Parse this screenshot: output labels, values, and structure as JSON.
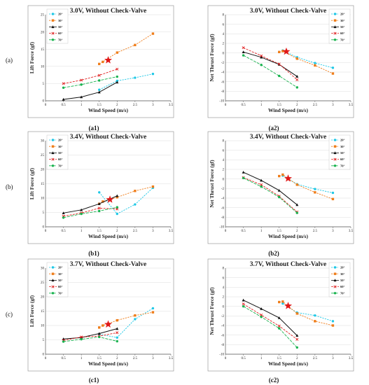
{
  "row_labels": [
    "(a)",
    "(b)",
    "(c)"
  ],
  "legend_labels": [
    "20°",
    "30°",
    "50°",
    "60°",
    "70°"
  ],
  "series_styles": [
    {
      "color": "#1ec8e6",
      "marker": "circle",
      "dash": "2.2,1.4"
    },
    {
      "color": "#ef7d1a",
      "marker": "square",
      "dash": "2.2,1.4"
    },
    {
      "color": "#111111",
      "marker": "triangle",
      "dash": ""
    },
    {
      "color": "#e02020",
      "marker": "x",
      "dash": "3,1.5"
    },
    {
      "color": "#19b34f",
      "marker": "circle",
      "dash": "4,1.5"
    }
  ],
  "star_color": "#e01818",
  "chart_data": [
    {
      "id": "a1",
      "panel_label": "(a1)",
      "type": "line",
      "title": "3.0V, Without Check-Valve",
      "xlabel": "Wind Speed (m/s)",
      "ylabel": "Lift Force (gf)",
      "xlim": [
        0,
        3.5
      ],
      "ylim": [
        0,
        25
      ],
      "xticks": [
        "0",
        "0.5",
        "1",
        "1.5",
        "2",
        "2.5",
        "3",
        "3.5"
      ],
      "yticks": [
        "0",
        "5",
        "10",
        "15",
        "20",
        "25"
      ],
      "legend_position": "top-left",
      "star": {
        "x": 1.75,
        "y": 11.8
      },
      "series": [
        {
          "name": "20°",
          "x": [
            1.5,
            2,
            2.5,
            3
          ],
          "y": [
            3.2,
            5.8,
            6.7,
            7.8
          ]
        },
        {
          "name": "30°",
          "x": [
            1.5,
            1.6,
            2,
            2.5,
            3
          ],
          "y": [
            10.7,
            11.3,
            14.0,
            16.2,
            19.5
          ]
        },
        {
          "name": "50°",
          "x": [
            0.5,
            1,
            1.5,
            2
          ],
          "y": [
            0.4,
            1.1,
            2.5,
            5.4
          ]
        },
        {
          "name": "60°",
          "x": [
            0.5,
            1,
            1.5,
            2
          ],
          "y": [
            5.0,
            6.0,
            7.4,
            9.2
          ]
        },
        {
          "name": "70°",
          "x": [
            0.5,
            1,
            1.5,
            2
          ],
          "y": [
            3.8,
            4.7,
            5.9,
            7.0
          ]
        }
      ]
    },
    {
      "id": "a2",
      "panel_label": "(a2)",
      "type": "line",
      "title": "3.0V, Without Check-Valve",
      "xlabel": "Wind Speed (m/s)",
      "ylabel": "Net Thrust Force (gf)",
      "xlim": [
        0,
        3.5
      ],
      "ylim": [
        -10,
        8
      ],
      "xticks": [
        "0",
        "0.5",
        "1",
        "1.5",
        "2",
        "2.5",
        "3",
        "3.5"
      ],
      "yticks": [
        "-10",
        "-8",
        "-6",
        "-4",
        "-2",
        "0",
        "2",
        "4",
        "6",
        "8"
      ],
      "legend_position": "top-right",
      "star": {
        "x": 1.7,
        "y": 0.3
      },
      "series": [
        {
          "name": "20°",
          "x": [
            1.6,
            2,
            2.5,
            3
          ],
          "y": [
            0.5,
            -0.9,
            -2.1,
            -3.1
          ]
        },
        {
          "name": "30°",
          "x": [
            1.5,
            1.6,
            2,
            2.5,
            3
          ],
          "y": [
            0.2,
            0.4,
            -1.2,
            -2.6,
            -4.3
          ]
        },
        {
          "name": "50°",
          "x": [
            0.5,
            1,
            1.5,
            2
          ],
          "y": [
            0.2,
            -0.9,
            -2.4,
            -4.9
          ]
        },
        {
          "name": "60°",
          "x": [
            0.5,
            1,
            1.5,
            2
          ],
          "y": [
            1.1,
            -0.6,
            -2.3,
            -5.6
          ]
        },
        {
          "name": "70°",
          "x": [
            0.5,
            1,
            1.5,
            2
          ],
          "y": [
            -0.5,
            -2.5,
            -4.8,
            -7.2
          ]
        }
      ]
    },
    {
      "id": "b1",
      "panel_label": "(b1)",
      "type": "line",
      "title": "3.4V, Without Check-Valve",
      "xlabel": "Wind Speed (m/s)",
      "ylabel": "Lift Force (gf)",
      "xlim": [
        0,
        3.5
      ],
      "ylim": [
        0,
        30
      ],
      "xticks": [
        "0",
        "0.5",
        "1",
        "1.5",
        "2",
        "2.5",
        "3",
        "3.5"
      ],
      "yticks": [
        "0",
        "5",
        "10",
        "15",
        "20",
        "25",
        "30"
      ],
      "legend_position": "top-left",
      "star": {
        "x": 1.8,
        "y": 9.5
      },
      "series": [
        {
          "name": "20°",
          "x": [
            1.5,
            2,
            2.5,
            3
          ],
          "y": [
            12.0,
            4.5,
            7.8,
            13.6
          ]
        },
        {
          "name": "30°",
          "x": [
            1.5,
            1.6,
            2,
            2.5,
            3
          ],
          "y": [
            8.0,
            8.8,
            10.3,
            12.5,
            14.0
          ]
        },
        {
          "name": "50°",
          "x": [
            0.5,
            1,
            1.5,
            2
          ],
          "y": [
            4.8,
            5.9,
            8.0,
            10.8
          ]
        },
        {
          "name": "60°",
          "x": [
            0.5,
            1,
            1.5,
            2
          ],
          "y": [
            3.7,
            4.8,
            6.5,
            6.2
          ]
        },
        {
          "name": "70°",
          "x": [
            0.5,
            1,
            1.5,
            2
          ],
          "y": [
            3.2,
            4.5,
            5.5,
            6.8
          ]
        }
      ]
    },
    {
      "id": "b2",
      "panel_label": "(b2)",
      "type": "line",
      "title": "3.4V, Without Check-Valve",
      "xlabel": "Wind Speed (m/s)",
      "ylabel": "Net Thrust Force (gf)",
      "xlim": [
        0,
        3.5
      ],
      "ylim": [
        -10,
        8
      ],
      "xticks": [
        "0",
        "0.5",
        "1",
        "1.5",
        "2",
        "2.5",
        "3",
        "3.5"
      ],
      "yticks": [
        "-10",
        "-8",
        "-6",
        "-4",
        "-2",
        "0",
        "2",
        "4",
        "6",
        "8"
      ],
      "legend_position": "top-right",
      "star": {
        "x": 1.75,
        "y": 0.1
      },
      "series": [
        {
          "name": "20°",
          "x": [
            1.6,
            2,
            2.5,
            3
          ],
          "y": [
            0.7,
            -1.1,
            -2.1,
            -2.9
          ]
        },
        {
          "name": "30°",
          "x": [
            1.5,
            1.6,
            2,
            2.5,
            3
          ],
          "y": [
            0.6,
            0.9,
            -1.2,
            -2.8,
            -4.2
          ]
        },
        {
          "name": "50°",
          "x": [
            0.5,
            1,
            1.5,
            2
          ],
          "y": [
            1.4,
            -0.3,
            -2.4,
            -5.4
          ]
        },
        {
          "name": "60°",
          "x": [
            0.5,
            1,
            1.5,
            2
          ],
          "y": [
            0.3,
            -1.2,
            -3.6,
            -6.9
          ]
        },
        {
          "name": "70°",
          "x": [
            0.5,
            1,
            1.5,
            2
          ],
          "y": [
            0.2,
            -1.6,
            -3.8,
            -7.1
          ]
        }
      ]
    },
    {
      "id": "c1",
      "panel_label": "(c1)",
      "type": "line",
      "title": "3.7V, Without Check-Valve",
      "xlabel": "Wind Speed (m/s)",
      "ylabel": "Lift Force (gf)",
      "xlim": [
        0,
        3.5
      ],
      "ylim": [
        0,
        30
      ],
      "xticks": [
        "0",
        "0.5",
        "1",
        "1.5",
        "2",
        "2.5",
        "3",
        "3.5"
      ],
      "yticks": [
        "0",
        "5",
        "10",
        "15",
        "20",
        "25",
        "30"
      ],
      "legend_position": "top-left",
      "star": {
        "x": 1.75,
        "y": 10.4
      },
      "series": [
        {
          "name": "20°",
          "x": [
            1.5,
            2,
            2.5,
            3
          ],
          "y": [
            7.0,
            5.8,
            12.2,
            16.0
          ]
        },
        {
          "name": "30°",
          "x": [
            1.5,
            1.6,
            2,
            2.5,
            3
          ],
          "y": [
            9.3,
            10.0,
            11.8,
            13.5,
            14.6
          ]
        },
        {
          "name": "50°",
          "x": [
            0.5,
            1,
            1.5,
            2
          ],
          "y": [
            5.3,
            5.8,
            7.2,
            8.9
          ]
        },
        {
          "name": "60°",
          "x": [
            0.5,
            1,
            1.5,
            2
          ],
          "y": [
            4.8,
            6.0,
            6.3,
            7.5
          ]
        },
        {
          "name": "70°",
          "x": [
            0.5,
            1,
            1.5,
            2
          ],
          "y": [
            4.4,
            5.2,
            6.0,
            4.5
          ]
        }
      ]
    },
    {
      "id": "c2",
      "panel_label": "(c2)",
      "type": "line",
      "title": "3.7V, Without Check-Valve",
      "xlabel": "Wind Speed (m/s)",
      "ylabel": "Net Thrust Force (gf)",
      "xlim": [
        0,
        3.5
      ],
      "ylim": [
        -10,
        8
      ],
      "xticks": [
        "0",
        "0.5",
        "1",
        "1.5",
        "2",
        "2.5",
        "3",
        "3.5"
      ],
      "yticks": [
        "-10",
        "-8",
        "-6",
        "-4",
        "-2",
        "0",
        "2",
        "4",
        "6",
        "8"
      ],
      "legend_position": "top-right",
      "star": {
        "x": 1.75,
        "y": 0.1
      },
      "series": [
        {
          "name": "20°",
          "x": [
            1.6,
            2,
            2.5,
            3
          ],
          "y": [
            0.6,
            -1.3,
            -1.9,
            -3.1
          ]
        },
        {
          "name": "30°",
          "x": [
            1.5,
            1.6,
            2,
            2.5,
            3
          ],
          "y": [
            0.9,
            1.0,
            -1.5,
            -3.1,
            -4.0
          ]
        },
        {
          "name": "50°",
          "x": [
            0.5,
            1,
            1.5,
            2
          ],
          "y": [
            1.3,
            -0.5,
            -2.4,
            -6.1
          ]
        },
        {
          "name": "60°",
          "x": [
            0.5,
            1,
            1.5,
            2
          ],
          "y": [
            0.5,
            -1.8,
            -4.1,
            -6.9
          ]
        },
        {
          "name": "70°",
          "x": [
            0.5,
            1,
            1.5,
            2
          ],
          "y": [
            0.0,
            -2.2,
            -4.6,
            -8.6
          ]
        }
      ]
    }
  ]
}
